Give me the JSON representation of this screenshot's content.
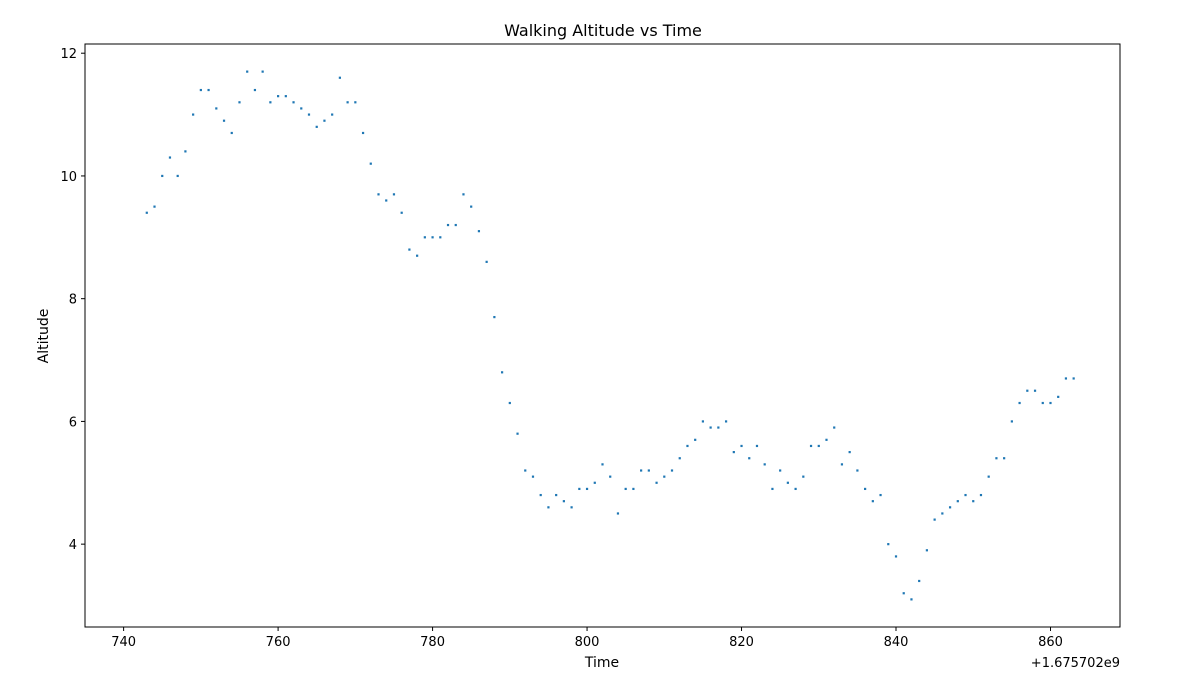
{
  "chart_data": {
    "type": "scatter",
    "title": "Walking Altitude vs Time",
    "xlabel": "Time",
    "ylabel": "Altitude",
    "x_offset_label": "+1.675702e9",
    "xlim": [
      735,
      869
    ],
    "ylim": [
      2.65,
      12.15
    ],
    "x_ticks": [
      740,
      760,
      780,
      800,
      820,
      840,
      860
    ],
    "x_tick_labels": [
      "740",
      "760",
      "780",
      "800",
      "820",
      "840",
      "860"
    ],
    "y_ticks": [
      4,
      6,
      8,
      10,
      12
    ],
    "y_tick_labels": [
      "4",
      "6",
      "8",
      "10",
      "12"
    ],
    "grid": false,
    "colors": {
      "marker": "#1f77b4",
      "axes": "#000000",
      "background": "#ffffff"
    },
    "series": [
      {
        "x": [
          743,
          744,
          745,
          746,
          747,
          748,
          749,
          750,
          751,
          752,
          753,
          754,
          755,
          756,
          757,
          758,
          759,
          760,
          761,
          762,
          763,
          764,
          765,
          766,
          767,
          768,
          769,
          770,
          771,
          772,
          773,
          774,
          775,
          776,
          777,
          778,
          779,
          780,
          781,
          782,
          783,
          784,
          785,
          786,
          787,
          788,
          789,
          790,
          791,
          792,
          793,
          794,
          795,
          796,
          797,
          798,
          799,
          800,
          801,
          802,
          803,
          804,
          805,
          806,
          807,
          808,
          809,
          810,
          811,
          812,
          813,
          814,
          815,
          816,
          817,
          818,
          819,
          820,
          821,
          822,
          823,
          824,
          825,
          826,
          827,
          828,
          829,
          830,
          831,
          832,
          833,
          834,
          835,
          836,
          837,
          838,
          839,
          840,
          841,
          842,
          843,
          844,
          845,
          846,
          847,
          848,
          849,
          850,
          851,
          852,
          853,
          854,
          855,
          856,
          857,
          858,
          859,
          860,
          861,
          862,
          863
        ],
        "y": [
          9.4,
          9.5,
          10.0,
          10.3,
          10.0,
          10.4,
          11.0,
          11.4,
          11.4,
          11.1,
          10.9,
          10.7,
          11.2,
          11.7,
          11.4,
          11.7,
          11.2,
          11.3,
          11.3,
          11.2,
          11.1,
          11.0,
          10.8,
          10.9,
          11.0,
          11.6,
          11.2,
          11.2,
          10.7,
          10.2,
          9.7,
          9.6,
          9.7,
          9.4,
          8.8,
          8.7,
          9.0,
          9.0,
          9.0,
          9.2,
          9.2,
          9.7,
          9.5,
          9.1,
          8.6,
          7.7,
          6.8,
          6.3,
          5.8,
          5.2,
          5.1,
          4.8,
          4.6,
          4.8,
          4.7,
          4.6,
          4.9,
          4.9,
          5.0,
          5.3,
          5.1,
          4.5,
          4.9,
          4.9,
          5.2,
          5.2,
          5.0,
          5.1,
          5.2,
          5.4,
          5.6,
          5.7,
          6.0,
          5.9,
          5.9,
          6.0,
          5.5,
          5.6,
          5.4,
          5.6,
          5.3,
          4.9,
          5.2,
          5.0,
          4.9,
          5.1,
          5.6,
          5.6,
          5.7,
          5.9,
          5.3,
          5.5,
          5.2,
          4.9,
          4.7,
          4.8,
          4.0,
          3.8,
          3.2,
          3.1,
          3.4,
          3.9,
          4.4,
          4.5,
          4.6,
          4.7,
          4.8,
          4.7,
          4.8,
          5.1,
          5.4,
          5.4,
          6.0,
          6.3,
          6.5,
          6.5,
          6.3,
          6.3,
          6.4,
          6.7,
          6.7
        ]
      }
    ]
  }
}
